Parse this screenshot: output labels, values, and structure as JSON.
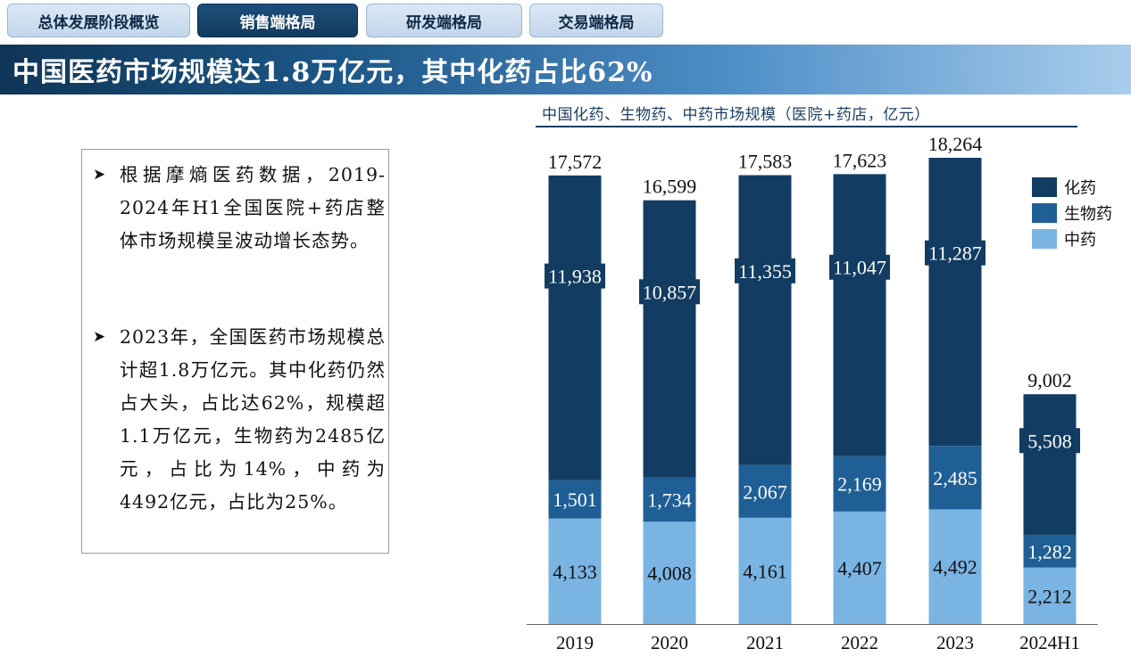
{
  "tabs": [
    {
      "label": "总体发展阶段概览",
      "active": false
    },
    {
      "label": "销售端格局",
      "active": true
    },
    {
      "label": "研发端格局",
      "active": false
    },
    {
      "label": "交易端格局",
      "active": false
    }
  ],
  "banner": {
    "title": "中国医药市场规模达1.8万亿元，其中化药占比62%"
  },
  "textbox": {
    "bullets": [
      "根据摩熵医药数据，2019-2024年H1全国医院+药店整体市场规模呈波动增长态势。",
      "2023年，全国医药市场规模总计超1.8万亿元。其中化药仍然占大头，占比达62%，规模超1.1万亿元，生物药为2485亿元，占比为14%，中药为4492亿元，占比为25%。"
    ]
  },
  "colors": {
    "chem": "#123c62",
    "bio": "#1f5f96",
    "tcm": "#79b4e3"
  },
  "chart_data": {
    "type": "bar",
    "stacked": true,
    "title": "中国化药、生物药、中药市场规模（医院+药店，亿元）",
    "categories": [
      "2019",
      "2020",
      "2021",
      "2022",
      "2023",
      "2024H1"
    ],
    "series": [
      {
        "name": "中药",
        "values": [
          4133,
          4008,
          4161,
          4407,
          4492,
          2212
        ],
        "labels": [
          "4,133",
          "4,008",
          "4,161",
          "4,407",
          "4,492",
          "2,212"
        ]
      },
      {
        "name": "生物药",
        "values": [
          1501,
          1734,
          2067,
          2169,
          2485,
          1282
        ],
        "labels": [
          "1,501",
          "1,734",
          "2,067",
          "2,169",
          "2,485",
          "1,282"
        ]
      },
      {
        "name": "化药",
        "values": [
          11938,
          10857,
          11355,
          11047,
          11287,
          5508
        ],
        "labels": [
          "11,938",
          "10,857",
          "11,355",
          "11,047",
          "11,287",
          "5,508"
        ]
      }
    ],
    "totals": [
      17572,
      16599,
      17583,
      17623,
      18264,
      9002
    ],
    "total_labels": [
      "17,572",
      "16,599",
      "17,583",
      "17,623",
      "18,264",
      "9,002"
    ],
    "legend": [
      "化药",
      "生物药",
      "中药"
    ],
    "legend_position": "right",
    "ylim": [
      0,
      18264
    ]
  }
}
